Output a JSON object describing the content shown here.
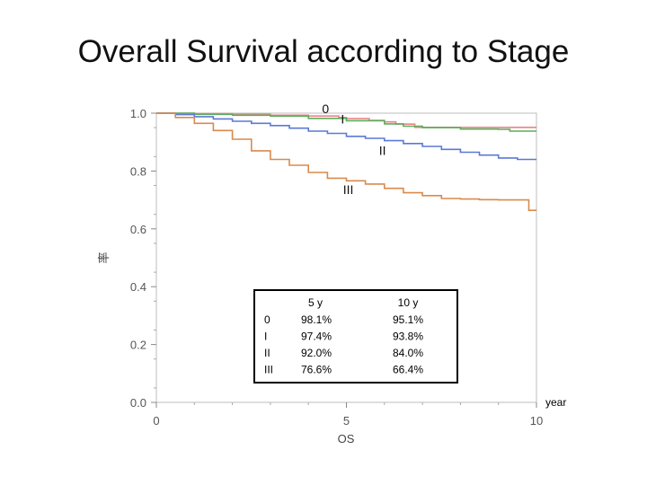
{
  "slide": {
    "title": "Overall Survival according to Stage"
  },
  "chart_data": {
    "type": "line",
    "xlabel": "OS",
    "ylabel": "率",
    "x_unit_label": "year",
    "xlim": [
      0,
      10
    ],
    "ylim": [
      0,
      1
    ],
    "x_ticks": [
      0,
      5,
      10
    ],
    "y_ticks": [
      0.0,
      0.2,
      0.4,
      0.6,
      0.8,
      1.0
    ],
    "y_tick_labels": [
      "0.0",
      "0.2",
      "0.4",
      "0.6",
      "0.8",
      "1.0"
    ],
    "grid": false,
    "colors": {
      "0": "#e8858a",
      "I": "#5cae5c",
      "II": "#5b79d6",
      "III": "#d98a4e"
    },
    "series": [
      {
        "name": "0",
        "x": [
          0,
          1.0,
          2.0,
          3.0,
          4.0,
          4.8,
          5.0,
          5.6,
          6.0,
          6.3,
          6.8,
          10.0
        ],
        "y": [
          1.0,
          0.998,
          0.996,
          0.993,
          0.99,
          0.985,
          0.981,
          0.975,
          0.97,
          0.962,
          0.951,
          0.951
        ]
      },
      {
        "name": "I",
        "x": [
          0,
          1.0,
          2.0,
          3.0,
          4.0,
          5.0,
          6.0,
          6.5,
          7.0,
          8.0,
          9.0,
          9.3,
          10.0
        ],
        "y": [
          1.0,
          0.996,
          0.993,
          0.99,
          0.982,
          0.974,
          0.963,
          0.955,
          0.95,
          0.945,
          0.944,
          0.938,
          0.938
        ]
      },
      {
        "name": "II",
        "x": [
          0,
          0.5,
          1.0,
          1.5,
          2.0,
          2.5,
          3.0,
          3.5,
          4.0,
          4.5,
          5.0,
          5.5,
          6.0,
          6.5,
          7.0,
          7.5,
          8.0,
          8.5,
          9.0,
          9.5,
          10.0
        ],
        "y": [
          1.0,
          0.995,
          0.988,
          0.98,
          0.972,
          0.965,
          0.957,
          0.948,
          0.938,
          0.93,
          0.92,
          0.913,
          0.905,
          0.895,
          0.885,
          0.875,
          0.865,
          0.855,
          0.845,
          0.84,
          0.84
        ]
      },
      {
        "name": "III",
        "x": [
          0,
          0.5,
          1.0,
          1.5,
          2.0,
          2.5,
          3.0,
          3.5,
          4.0,
          4.5,
          5.0,
          5.5,
          6.0,
          6.5,
          7.0,
          7.5,
          8.0,
          8.5,
          9.0,
          9.5,
          9.8,
          10.0
        ],
        "y": [
          1.0,
          0.985,
          0.965,
          0.94,
          0.91,
          0.87,
          0.84,
          0.82,
          0.795,
          0.775,
          0.766,
          0.755,
          0.74,
          0.725,
          0.715,
          0.705,
          0.703,
          0.701,
          0.7,
          0.7,
          0.664,
          0.664
        ]
      }
    ],
    "curve_labels": [
      {
        "series": "0",
        "text": "0",
        "x": 4.45,
        "y": 1.0
      },
      {
        "series": "I",
        "text": "I",
        "x": 4.9,
        "y": 0.965
      },
      {
        "series": "II",
        "text": "II",
        "x": 5.95,
        "y": 0.855
      },
      {
        "series": "III",
        "text": "III",
        "x": 5.05,
        "y": 0.72
      }
    ],
    "table": {
      "columns": [
        "",
        "5 y",
        "10 y"
      ],
      "rows": [
        [
          "0",
          "98.1%",
          "95.1%"
        ],
        [
          "I",
          "97.4%",
          "93.8%"
        ],
        [
          "II",
          "92.0%",
          "84.0%"
        ],
        [
          "III",
          "76.6%",
          "66.4%"
        ]
      ]
    }
  }
}
